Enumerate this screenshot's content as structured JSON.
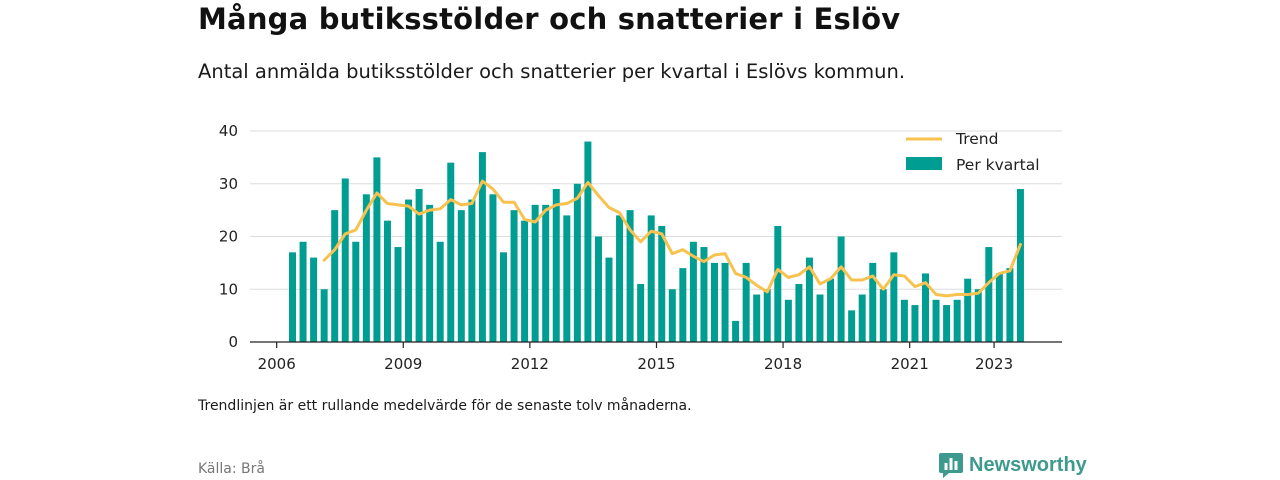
{
  "title": "Många butiksstölder och snatterier i Eslöv",
  "subtitle": "Antal anmälda butiksstölder och snatterier per kvartal i Eslövs kommun.",
  "note": "Trendlinjen är ett rullande medelvärde för de senaste tolv månaderna.",
  "source": "Källa: Brå",
  "brand": "Newsworthy",
  "colors": {
    "bars": "#009e92",
    "trend": "#f7c24f",
    "grid": "#dddddd",
    "axis": "#222222",
    "brand": "#3e9a8f"
  },
  "chart_data": {
    "type": "bar",
    "title": "Många butiksstölder och snatterier i Eslöv",
    "xlabel": "",
    "ylabel": "",
    "ylim": [
      0,
      40
    ],
    "yticks": [
      0,
      10,
      20,
      30,
      40
    ],
    "xticks": [
      "2006",
      "2009",
      "2012",
      "2015",
      "2018",
      "2021",
      "2023"
    ],
    "grid": true,
    "legend_position": "top-right",
    "start": "2006 Q1",
    "categories": [
      "2006 Q1",
      "2006 Q2",
      "2006 Q3",
      "2006 Q4",
      "2007 Q1",
      "2007 Q2",
      "2007 Q3",
      "2007 Q4",
      "2008 Q1",
      "2008 Q2",
      "2008 Q3",
      "2008 Q4",
      "2009 Q1",
      "2009 Q2",
      "2009 Q3",
      "2009 Q4",
      "2010 Q1",
      "2010 Q2",
      "2010 Q3",
      "2010 Q4",
      "2011 Q1",
      "2011 Q2",
      "2011 Q3",
      "2011 Q4",
      "2012 Q1",
      "2012 Q2",
      "2012 Q3",
      "2012 Q4",
      "2013 Q1",
      "2013 Q2",
      "2013 Q3",
      "2013 Q4",
      "2014 Q1",
      "2014 Q2",
      "2014 Q3",
      "2014 Q4",
      "2015 Q1",
      "2015 Q2",
      "2015 Q3",
      "2015 Q4",
      "2016 Q1",
      "2016 Q2",
      "2016 Q3",
      "2016 Q4",
      "2017 Q1",
      "2017 Q2",
      "2017 Q3",
      "2017 Q4",
      "2018 Q1",
      "2018 Q2",
      "2018 Q3",
      "2018 Q4",
      "2019 Q1",
      "2019 Q2",
      "2019 Q3",
      "2019 Q4",
      "2020 Q1",
      "2020 Q2",
      "2020 Q3",
      "2020 Q4",
      "2021 Q1",
      "2021 Q2",
      "2021 Q3",
      "2021 Q4",
      "2022 Q1",
      "2022 Q2",
      "2022 Q3",
      "2022 Q4",
      "2023 Q1",
      "2023 Q2"
    ],
    "series": [
      {
        "name": "Per kvartal",
        "type": "bar",
        "values": [
          17,
          19,
          16,
          10,
          25,
          31,
          19,
          28,
          35,
          23,
          18,
          27,
          29,
          26,
          19,
          34,
          25,
          27,
          36,
          28,
          17,
          25,
          23,
          26,
          26,
          29,
          24,
          30,
          38,
          20,
          16,
          24,
          25,
          11,
          24,
          22,
          10,
          14,
          19,
          18,
          15,
          15,
          4,
          15,
          9,
          10,
          22,
          8,
          11,
          16,
          9,
          12,
          20,
          6,
          9,
          15,
          10,
          17,
          8,
          7,
          13,
          8,
          7,
          8,
          12,
          10,
          18,
          13,
          14,
          29
        ]
      },
      {
        "name": "Trend",
        "type": "line",
        "values": [
          null,
          null,
          null,
          15.5,
          17.5,
          20.5,
          21.25,
          25,
          28.25,
          26.25,
          26,
          25.75,
          24.25,
          25,
          25.25,
          27,
          26,
          26.25,
          30.5,
          29,
          26.5,
          26.5,
          23.25,
          22.75,
          25,
          26,
          26.25,
          27.25,
          30.25,
          27.75,
          25.5,
          24.5,
          21.25,
          19,
          21,
          20.5,
          16.75,
          17.5,
          16.25,
          15.25,
          16.5,
          16.75,
          13,
          12.25,
          10.75,
          9.5,
          13.75,
          12.25,
          12.75,
          14.25,
          11,
          12,
          14.25,
          11.75,
          11.75,
          12.5,
          10,
          12.75,
          12.5,
          10.5,
          11.25,
          9,
          8.75,
          9,
          9,
          9.25,
          11.25,
          13,
          13.5,
          18.5
        ]
      }
    ]
  }
}
